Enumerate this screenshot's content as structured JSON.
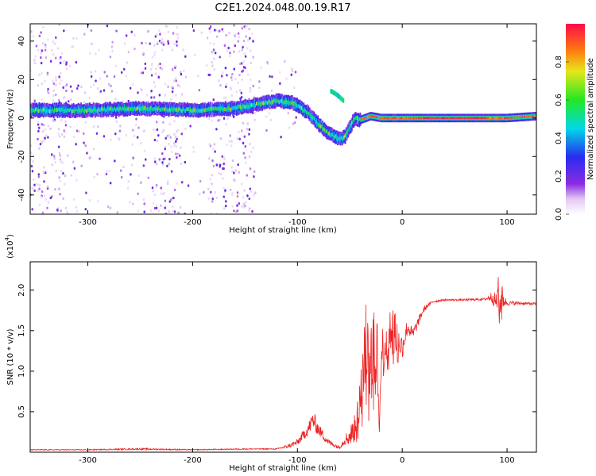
{
  "title": "C2E1.2024.048.00.19.R17",
  "chart_data": [
    {
      "type": "heatmap",
      "xlabel": "Height of straight line (km)",
      "ylabel": "Frequency (Hz)",
      "xlim": [
        -355,
        128
      ],
      "ylim": [
        -50,
        49
      ],
      "x_ticks": [
        -300,
        -200,
        -100,
        0,
        100
      ],
      "y_ticks": [
        -40,
        -20,
        0,
        20,
        40
      ],
      "colorbar": {
        "label": "Normalized spectral amplitude",
        "range": [
          0,
          1
        ],
        "ticks": [
          0.0,
          0.2,
          0.4,
          0.6,
          0.8
        ]
      },
      "ridge": {
        "name": "dominant frequency track",
        "x": [
          -355,
          -300,
          -250,
          -200,
          -160,
          -140,
          -120,
          -105,
          -90,
          -80,
          -70,
          -60,
          -55,
          -50,
          -45,
          -40,
          -35,
          -30,
          -20,
          0,
          50,
          100,
          128
        ],
        "y": [
          4,
          4,
          5,
          4,
          5,
          7,
          9,
          8,
          3,
          -3,
          -8,
          -11,
          -10,
          -5,
          0,
          -1,
          0,
          1,
          0,
          0,
          0,
          0,
          1
        ]
      },
      "branch": {
        "x": [
          -68,
          -62,
          -56
        ],
        "y": [
          14,
          12,
          9
        ]
      },
      "scatter_clusters": [
        {
          "x_range": [
            -355,
            -320
          ],
          "y_range": [
            -50,
            49
          ],
          "density": "high"
        },
        {
          "x_range": [
            -320,
            -240
          ],
          "y_range": [
            -50,
            49
          ],
          "density": "medium"
        },
        {
          "x_range": [
            -240,
            -210
          ],
          "y_range": [
            -50,
            49
          ],
          "density": "high"
        },
        {
          "x_range": [
            -210,
            -185
          ],
          "y_range": [
            -50,
            49
          ],
          "density": "low"
        },
        {
          "x_range": [
            -185,
            -140
          ],
          "y_range": [
            -50,
            49
          ],
          "density": "high"
        },
        {
          "x_range": [
            -140,
            -100
          ],
          "y_range": [
            -10,
            30
          ],
          "density": "low"
        }
      ]
    },
    {
      "type": "line",
      "xlabel": "Height of straight line (km)",
      "ylabel": "SNR (10 * v/v)",
      "y_scale_label": "(x10",
      "y_scale_exponent": "4",
      "y_scale_close": ")",
      "xlim": [
        -355,
        128
      ],
      "ylim": [
        0,
        2.35
      ],
      "x_ticks": [
        -300,
        -200,
        -100,
        0,
        100
      ],
      "y_ticks": [
        0.5,
        1.0,
        1.5,
        2.0
      ],
      "series": [
        {
          "color": "#ee2222",
          "x": [
            -355,
            -300,
            -250,
            -200,
            -150,
            -120,
            -110,
            -100,
            -95,
            -90,
            -85,
            -80,
            -70,
            -60,
            -55,
            -50,
            -45,
            -42,
            -40,
            -38,
            -35,
            -30,
            -25,
            -22,
            -20,
            -15,
            -10,
            -5,
            0,
            5,
            10,
            15,
            20,
            25,
            30,
            40,
            60,
            80,
            85,
            90,
            93,
            95,
            97,
            100,
            110,
            128
          ],
          "y": [
            0.03,
            0.03,
            0.04,
            0.03,
            0.04,
            0.04,
            0.07,
            0.12,
            0.2,
            0.28,
            0.4,
            0.28,
            0.12,
            0.06,
            0.15,
            0.2,
            0.3,
            0.5,
            1.0,
            0.7,
            1.4,
            1.0,
            1.6,
            0.4,
            1.2,
            1.35,
            1.6,
            1.4,
            1.3,
            1.55,
            1.45,
            1.6,
            1.75,
            1.82,
            1.86,
            1.88,
            1.88,
            1.89,
            1.92,
            1.85,
            2.05,
            1.9,
            1.87,
            1.84,
            1.84,
            1.83
          ],
          "noise": [
            0.006,
            0.006,
            0.01,
            0.006,
            0.006,
            0.006,
            0.02,
            0.04,
            0.06,
            0.08,
            0.12,
            0.08,
            0.04,
            0.02,
            0.06,
            0.12,
            0.18,
            0.3,
            0.5,
            0.45,
            0.55,
            0.5,
            0.55,
            0.25,
            0.35,
            0.35,
            0.3,
            0.25,
            0.15,
            0.1,
            0.08,
            0.06,
            0.04,
            0.02,
            0.015,
            0.012,
            0.012,
            0.015,
            0.06,
            0.12,
            0.3,
            0.2,
            0.08,
            0.03,
            0.02,
            0.015
          ]
        }
      ]
    }
  ]
}
